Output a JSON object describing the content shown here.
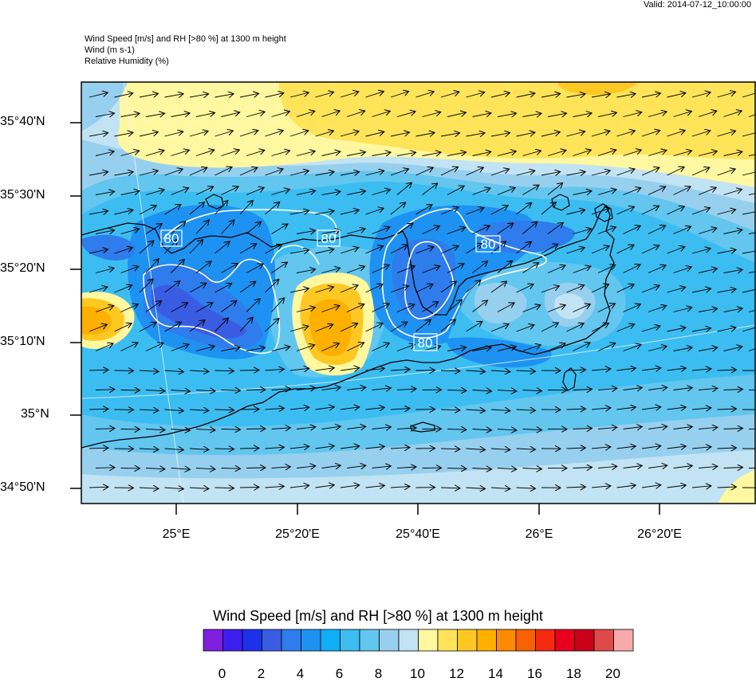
{
  "valid_text": "Valid: 2014-07-12_10:00:00",
  "title_lines": [
    "Wind Speed [m/s] and RH [>80 %] at 1300 m height",
    "Wind   (m s-1)",
    "Relative Humidity   (%)"
  ],
  "lat_labels": [
    "35°40'N",
    "35°30'N",
    "35°20'N",
    "35°10'N",
    "35°N",
    "34°50'N"
  ],
  "lon_labels": [
    "25°E",
    "25°20'E",
    "25°40'E",
    "26°E",
    "26°20'E"
  ],
  "contour_labels": [
    "80",
    "80",
    "80",
    "80"
  ],
  "legend": {
    "title": "Wind Speed [m/s] and RH [>80 %] at 1300 m height",
    "tick_labels": [
      "0",
      "2",
      "4",
      "6",
      "8",
      "10",
      "12",
      "14",
      "16",
      "18",
      "20"
    ],
    "colors": [
      "#7f1fe0",
      "#3d1ef0",
      "#1c31ea",
      "#3a5ce2",
      "#2f7cec",
      "#1e92f2",
      "#10aef5",
      "#3bbdf2",
      "#62c6ef",
      "#97d0ef",
      "#c2e3f3",
      "#fff8a0",
      "#ffe45a",
      "#fdc822",
      "#fdb000",
      "#fd8a00",
      "#f86000",
      "#f52a10",
      "#e8001e",
      "#cc0018",
      "#de4a48",
      "#f8aaaa"
    ]
  },
  "colors": {
    "wind_5": "#3bbdf2",
    "wind_6": "#1e92f2",
    "wind_7": "#62c6ef",
    "wind_8": "#97d0ef",
    "wind_9": "#c2e3f3",
    "wind_11": "#fff8a0",
    "wind_12": "#ffe45a",
    "wind_13": "#fdc822",
    "wind_14": "#fdb000",
    "wind_4": "#3a5ce2",
    "coast": "#000000",
    "rh_contour": "#ffffff",
    "arrow": "#000000"
  }
}
